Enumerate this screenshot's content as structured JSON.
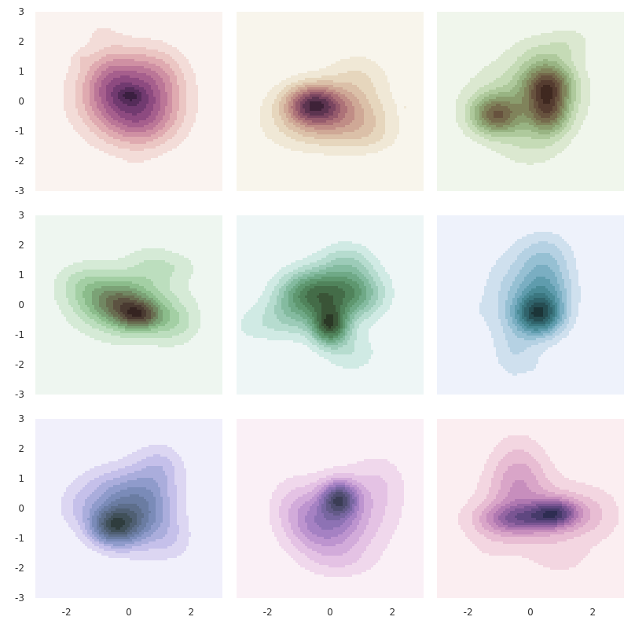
{
  "chart_data": {
    "type": "kde-contour-grid",
    "rows": 3,
    "cols": 3,
    "shared_axes": true,
    "xlim": [
      -3,
      3
    ],
    "ylim": [
      -3,
      3
    ],
    "x_ticks": [
      "-2",
      "0",
      "2"
    ],
    "y_ticks": [
      "3",
      "2",
      "1",
      "0",
      "-1",
      "-2",
      "-3"
    ],
    "grid": false,
    "levels": 9,
    "panels": [
      {
        "name": "panel-r1c1",
        "background": "#faf3f0",
        "palette": [
          "#f3dcd8",
          "#ebc6c3",
          "#dfaab0",
          "#cf90a3",
          "#bb7697",
          "#a65f8d",
          "#8d4a80",
          "#713a70",
          "#552c5a",
          "#3a1f40"
        ],
        "peaks": [
          {
            "x": 0.0,
            "y": 0.15,
            "sx": 1.05,
            "sy": 0.95,
            "w": 1.0
          },
          {
            "x": 0.5,
            "y": -0.6,
            "sx": 0.8,
            "sy": 0.7,
            "w": 0.35
          },
          {
            "x": -0.6,
            "y": 0.8,
            "sx": 0.6,
            "sy": 0.7,
            "w": 0.25
          },
          {
            "x": -1.55,
            "y": 1.45,
            "sx": 0.2,
            "sy": 0.18,
            "w": 0.1
          },
          {
            "x": -0.9,
            "y": 2.4,
            "sx": 0.45,
            "sy": 0.4,
            "w": 0.09
          },
          {
            "x": 1.0,
            "y": 1.0,
            "sx": 0.6,
            "sy": 0.6,
            "w": 0.2
          },
          {
            "x": 0.2,
            "y": -2.4,
            "sx": 0.4,
            "sy": 0.3,
            "w": 0.07
          },
          {
            "x": 0.05,
            "y": 0.2,
            "sx": 0.3,
            "sy": 0.18,
            "w": 0.25
          }
        ]
      },
      {
        "name": "panel-r1c2",
        "background": "#f8f5ec",
        "palette": [
          "#f0e8d6",
          "#e6d6bd",
          "#dbc0a8",
          "#cfa896",
          "#c08d86",
          "#ad7278",
          "#955a6c",
          "#7a4560",
          "#5c3450",
          "#3e2238"
        ],
        "peaks": [
          {
            "x": -0.55,
            "y": -0.1,
            "sx": 0.6,
            "sy": 0.45,
            "w": 1.0
          },
          {
            "x": 0.6,
            "y": -0.55,
            "sx": 0.9,
            "sy": 0.7,
            "w": 0.45
          },
          {
            "x": -0.4,
            "y": -0.3,
            "sx": 1.2,
            "sy": 0.7,
            "w": 0.3
          },
          {
            "x": 0.9,
            "y": 0.9,
            "sx": 0.7,
            "sy": 0.55,
            "w": 0.22
          },
          {
            "x": -1.0,
            "y": -1.0,
            "sx": 0.9,
            "sy": 0.55,
            "w": 0.15
          },
          {
            "x": 1.4,
            "y": -1.2,
            "sx": 0.6,
            "sy": 0.4,
            "w": 0.12
          },
          {
            "x": 1.4,
            "y": 2.65,
            "sx": 0.14,
            "sy": 0.1,
            "w": 0.08
          },
          {
            "x": -0.8,
            "y": 2.55,
            "sx": 0.1,
            "sy": 0.08,
            "w": 0.07
          },
          {
            "x": 2.45,
            "y": -0.2,
            "sx": 0.12,
            "sy": 0.1,
            "w": 0.07
          },
          {
            "x": -1.15,
            "y": -2.8,
            "sx": 0.1,
            "sy": 0.08,
            "w": 0.07
          }
        ]
      },
      {
        "name": "panel-r1c3",
        "background": "#f0f6ec",
        "palette": [
          "#dbe8d0",
          "#c5dbb6",
          "#aec99c",
          "#98b483",
          "#8a9c6d",
          "#80835b",
          "#756a4c",
          "#67523e",
          "#553c30",
          "#3f2820"
        ],
        "peaks": [
          {
            "x": 0.55,
            "y": 0.55,
            "sx": 0.55,
            "sy": 0.5,
            "w": 1.0
          },
          {
            "x": -1.1,
            "y": -0.45,
            "sx": 0.55,
            "sy": 0.45,
            "w": 0.9
          },
          {
            "x": 0.55,
            "y": -0.4,
            "sx": 0.45,
            "sy": 0.5,
            "w": 0.8
          },
          {
            "x": -0.2,
            "y": 0.0,
            "sx": 1.3,
            "sy": 1.0,
            "w": 0.4
          },
          {
            "x": 0.4,
            "y": 1.6,
            "sx": 0.7,
            "sy": 0.5,
            "w": 0.2
          },
          {
            "x": 1.3,
            "y": 2.0,
            "sx": 0.5,
            "sy": 0.4,
            "w": 0.15
          },
          {
            "x": 0.0,
            "y": -1.6,
            "sx": 0.7,
            "sy": 0.5,
            "w": 0.15
          }
        ]
      },
      {
        "name": "panel-r2c1",
        "background": "#eef6f0",
        "palette": [
          "#d5ead6",
          "#bcdebe",
          "#a3cfa4",
          "#8bbc8b",
          "#7ba276",
          "#718762",
          "#686d50",
          "#5c5241",
          "#4a3a31",
          "#352421"
        ],
        "peaks": [
          {
            "x": 0.35,
            "y": -0.35,
            "sx": 0.5,
            "sy": 0.35,
            "w": 1.0
          },
          {
            "x": -0.4,
            "y": 0.1,
            "sx": 0.7,
            "sy": 0.5,
            "w": 0.8
          },
          {
            "x": 0.0,
            "y": 0.0,
            "sx": 1.3,
            "sy": 0.9,
            "w": 0.45
          },
          {
            "x": -1.5,
            "y": 0.7,
            "sx": 0.6,
            "sy": 0.5,
            "w": 0.3
          },
          {
            "x": 0.8,
            "y": 1.3,
            "sx": 0.6,
            "sy": 0.5,
            "w": 0.25
          },
          {
            "x": 1.7,
            "y": 1.3,
            "sx": 0.45,
            "sy": 0.3,
            "w": 0.12
          },
          {
            "x": 1.5,
            "y": -0.6,
            "sx": 0.5,
            "sy": 0.5,
            "w": 0.3
          }
        ]
      },
      {
        "name": "panel-r2c2",
        "background": "#eef6f6",
        "palette": [
          "#d0eae4",
          "#b6dccf",
          "#9ccbb8",
          "#84bba0",
          "#6fa987",
          "#5e976f",
          "#50835b",
          "#446c48",
          "#3a5437",
          "#2b3826"
        ],
        "peaks": [
          {
            "x": 0.0,
            "y": -0.7,
            "sx": 0.4,
            "sy": 0.45,
            "w": 1.0
          },
          {
            "x": -0.6,
            "y": 0.4,
            "sx": 0.7,
            "sy": 0.55,
            "w": 0.8
          },
          {
            "x": 0.7,
            "y": 0.4,
            "sx": 0.7,
            "sy": 0.6,
            "w": 0.7
          },
          {
            "x": -1.3,
            "y": -0.4,
            "sx": 0.7,
            "sy": 0.55,
            "w": 0.3
          },
          {
            "x": 0.5,
            "y": 1.5,
            "sx": 0.6,
            "sy": 0.45,
            "w": 0.25
          },
          {
            "x": -2.5,
            "y": -0.7,
            "sx": 0.5,
            "sy": 0.4,
            "w": 0.12
          },
          {
            "x": 0.7,
            "y": -1.6,
            "sx": 0.6,
            "sy": 0.5,
            "w": 0.2
          }
        ]
      },
      {
        "name": "panel-r2c3",
        "background": "#eef2fb",
        "palette": [
          "#cfe0ee",
          "#b5d1e3",
          "#96c0d3",
          "#7aaec2",
          "#5f9cad",
          "#4a8a96",
          "#3b7780",
          "#30636b",
          "#264d52",
          "#1c3538"
        ],
        "peaks": [
          {
            "x": 0.25,
            "y": -0.35,
            "sx": 0.5,
            "sy": 0.45,
            "w": 1.0
          },
          {
            "x": 0.5,
            "y": 0.5,
            "sx": 0.6,
            "sy": 0.8,
            "w": 0.6
          },
          {
            "x": -0.4,
            "y": 0.2,
            "sx": 0.8,
            "sy": 1.1,
            "w": 0.35
          },
          {
            "x": 0.5,
            "y": 1.8,
            "sx": 0.6,
            "sy": 0.5,
            "w": 0.2
          },
          {
            "x": -0.5,
            "y": -1.7,
            "sx": 0.45,
            "sy": 0.6,
            "w": 0.2
          },
          {
            "x": 0.4,
            "y": -2.5,
            "sx": 0.3,
            "sy": 0.5,
            "w": 0.1
          },
          {
            "x": -2.1,
            "y": -0.2,
            "sx": 0.4,
            "sy": 0.35,
            "w": 0.08
          }
        ]
      },
      {
        "name": "panel-r3c1",
        "background": "#f1f0fb",
        "palette": [
          "#dcd6f2",
          "#c5c0ea",
          "#aaaddc",
          "#8f9bcb",
          "#7a8bb8",
          "#6a7ca2",
          "#5d6e8b",
          "#4f5f73",
          "#405059",
          "#2f3d3e"
        ],
        "peaks": [
          {
            "x": -0.5,
            "y": -0.6,
            "sx": 0.55,
            "sy": 0.45,
            "w": 1.0
          },
          {
            "x": 0.4,
            "y": 0.0,
            "sx": 0.75,
            "sy": 0.85,
            "w": 0.75
          },
          {
            "x": -0.8,
            "y": 0.5,
            "sx": 0.7,
            "sy": 0.6,
            "w": 0.3
          },
          {
            "x": 1.0,
            "y": 1.4,
            "sx": 0.55,
            "sy": 0.55,
            "w": 0.25
          },
          {
            "x": -1.7,
            "y": 0.0,
            "sx": 0.5,
            "sy": 0.5,
            "w": 0.15
          },
          {
            "x": 1.4,
            "y": -1.1,
            "sx": 0.5,
            "sy": 0.5,
            "w": 0.15
          }
        ]
      },
      {
        "name": "panel-r3c2",
        "background": "#faf0f6",
        "palette": [
          "#f0d8ec",
          "#e4c2e4",
          "#d2abda",
          "#bd94cf",
          "#a581c3",
          "#8d72b4",
          "#7766a0",
          "#635a88",
          "#4f4d70",
          "#3b3d55"
        ],
        "peaks": [
          {
            "x": 0.3,
            "y": 0.35,
            "sx": 0.4,
            "sy": 0.4,
            "w": 1.0
          },
          {
            "x": -0.3,
            "y": -0.5,
            "sx": 0.8,
            "sy": 0.7,
            "w": 0.6
          },
          {
            "x": 0.5,
            "y": -0.3,
            "sx": 1.1,
            "sy": 1.0,
            "w": 0.4
          },
          {
            "x": 1.6,
            "y": 0.9,
            "sx": 0.6,
            "sy": 0.7,
            "w": 0.2
          },
          {
            "x": 1.05,
            "y": 2.05,
            "sx": 0.18,
            "sy": 0.15,
            "w": 0.08
          },
          {
            "x": -1.3,
            "y": 0.3,
            "sx": 0.5,
            "sy": 0.6,
            "w": 0.15
          },
          {
            "x": 0.3,
            "y": -1.8,
            "sx": 0.8,
            "sy": 0.4,
            "w": 0.15
          }
        ]
      },
      {
        "name": "panel-r3c3",
        "background": "#fbeef1",
        "palette": [
          "#f3d6e1",
          "#e8bdd3",
          "#d9a5c8",
          "#c78ebd",
          "#b078b1",
          "#9565a3",
          "#7a5593",
          "#5f4780",
          "#463a6a",
          "#2e2d52"
        ],
        "peaks": [
          {
            "x": 0.8,
            "y": -0.15,
            "sx": 0.5,
            "sy": 0.32,
            "w": 1.0
          },
          {
            "x": -0.4,
            "y": -0.35,
            "sx": 0.85,
            "sy": 0.35,
            "w": 0.75
          },
          {
            "x": -0.4,
            "y": 1.0,
            "sx": 0.65,
            "sy": 0.95,
            "w": 0.5
          },
          {
            "x": 0.2,
            "y": -0.2,
            "sx": 1.5,
            "sy": 0.9,
            "w": 0.35
          },
          {
            "x": 1.9,
            "y": -0.2,
            "sx": 0.7,
            "sy": 0.6,
            "w": 0.2
          },
          {
            "x": 1.0,
            "y": -1.7,
            "sx": 0.7,
            "sy": 0.5,
            "w": 0.15
          },
          {
            "x": -1.3,
            "y": -1.2,
            "sx": 0.6,
            "sy": 0.5,
            "w": 0.1
          }
        ]
      }
    ]
  }
}
